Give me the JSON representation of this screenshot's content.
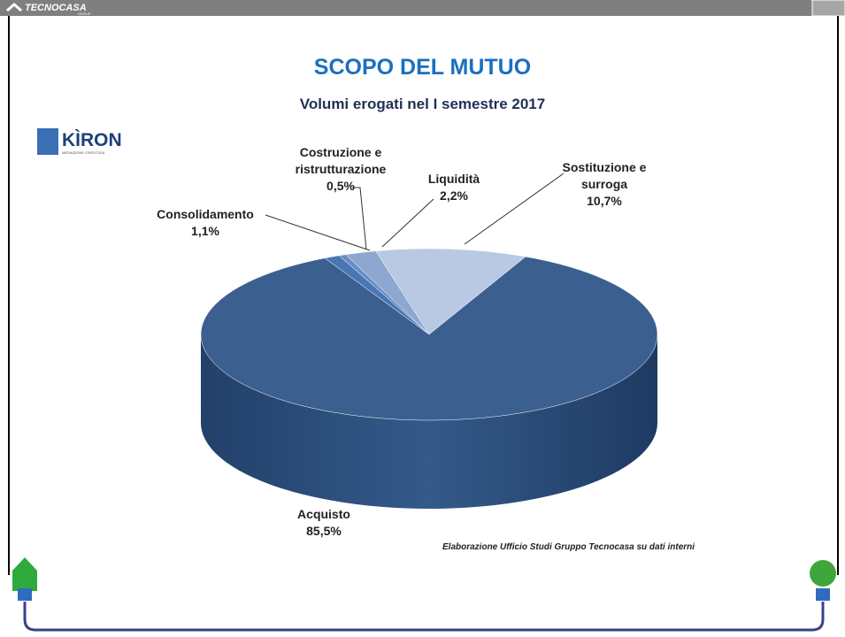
{
  "header": {
    "logo": "TECNOCASA",
    "logo_sub": "GROUP"
  },
  "brand": {
    "name": "KÌRON",
    "tagline": "MEDIAZIONE CREDITIZIA"
  },
  "chart_data": {
    "type": "pie",
    "title": "SCOPO DEL MUTUO",
    "subtitle": "Volumi erogati nel I semestre 2017",
    "categories": [
      "Sostituzione e surroga",
      "Liquidità",
      "Costruzione e ristrutturazione",
      "Consolidamento",
      "Acquisto"
    ],
    "values": [
      10.7,
      2.2,
      0.5,
      1.1,
      85.5
    ],
    "value_labels": [
      "10,7%",
      "2,2%",
      "0,5%",
      "1,1%",
      "85,5%"
    ],
    "colors": [
      "#b9c8e3",
      "#8ea7d1",
      "#6a8cc2",
      "#4877b5",
      "#3b5f8f"
    ]
  },
  "source": "Elaborazione Ufficio Studi Gruppo Tecnocasa su dati interni"
}
